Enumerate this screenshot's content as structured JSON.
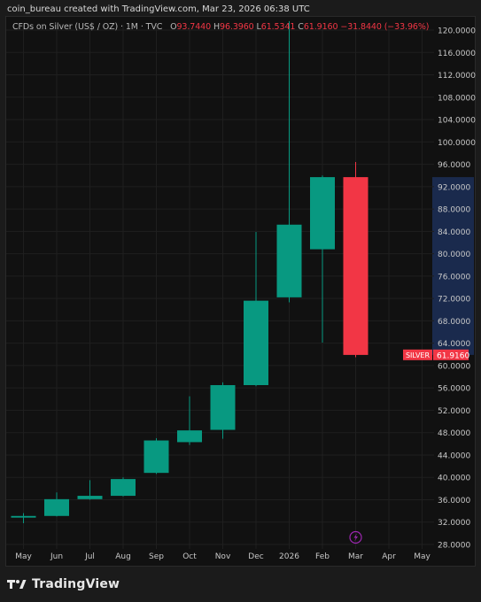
{
  "header": {
    "attribution": "coin_bureau created with TradingView.com, Mar 23, 2026 06:38 UTC"
  },
  "legend": {
    "symbol": "CFDs on Silver (US$ / OZ) · 1M · TVC",
    "o_label": "O",
    "o_value": "93.7440",
    "h_label": "H",
    "h_value": "96.3960",
    "l_label": "L",
    "l_value": "61.5341",
    "c_label": "C",
    "c_value": "61.9160",
    "change": "−31.8440 (−33.96%)"
  },
  "price_tag": {
    "name": "SILVER",
    "value": "61.9160",
    "color": "#f23645"
  },
  "footer": {
    "brand": "TradingView",
    "logo_icon": "tradingview-logo-icon"
  },
  "colors": {
    "up": "#089981",
    "down": "#f23645",
    "grid": "#1f1f1f",
    "highlight_band": "#1a2a4d"
  },
  "chart_data": {
    "type": "candlestick",
    "y_axis_side": "right",
    "ylim": [
      28,
      122
    ],
    "y_ticks": [
      "28.0000",
      "32.0000",
      "36.0000",
      "40.0000",
      "44.0000",
      "48.0000",
      "52.0000",
      "56.0000",
      "60.0000",
      "64.0000",
      "68.0000",
      "72.0000",
      "76.0000",
      "80.0000",
      "84.0000",
      "88.0000",
      "92.0000",
      "96.0000",
      "100.0000",
      "104.0000",
      "108.0000",
      "112.0000",
      "116.0000",
      "120.0000"
    ],
    "x_ticks": [
      "May",
      "Jun",
      "Jul",
      "Aug",
      "Sep",
      "Oct",
      "Nov",
      "Dec",
      "2026",
      "Feb",
      "Mar",
      "Apr",
      "May"
    ],
    "highlight_range": [
      61.9,
      93.7
    ],
    "candles": [
      {
        "month": "May",
        "open": 32.8,
        "high": 33.6,
        "low": 31.8,
        "close": 33.1
      },
      {
        "month": "Jun",
        "open": 33.1,
        "high": 37.3,
        "low": 33.0,
        "close": 36.1
      },
      {
        "month": "Jul",
        "open": 36.1,
        "high": 39.5,
        "low": 36.0,
        "close": 36.7
      },
      {
        "month": "Aug",
        "open": 36.7,
        "high": 40.0,
        "low": 36.6,
        "close": 39.7
      },
      {
        "month": "Sep",
        "open": 40.8,
        "high": 47.0,
        "low": 40.6,
        "close": 46.6
      },
      {
        "month": "Oct",
        "open": 46.3,
        "high": 54.5,
        "low": 45.8,
        "close": 48.4
      },
      {
        "month": "Nov",
        "open": 48.5,
        "high": 57.0,
        "low": 46.9,
        "close": 56.5
      },
      {
        "month": "Dec",
        "open": 56.5,
        "high": 83.9,
        "low": 56.3,
        "close": 71.6
      },
      {
        "month": "2026",
        "open": 72.2,
        "high": 121.6,
        "low": 71.3,
        "close": 85.2
      },
      {
        "month": "Feb",
        "open": 80.8,
        "high": 94.0,
        "low": 64.1,
        "close": 93.7
      },
      {
        "month": "Mar",
        "open": 93.7,
        "high": 96.4,
        "low": 61.5,
        "close": 61.9
      }
    ],
    "current_price": 61.916,
    "event_marker_month": "Mar"
  }
}
